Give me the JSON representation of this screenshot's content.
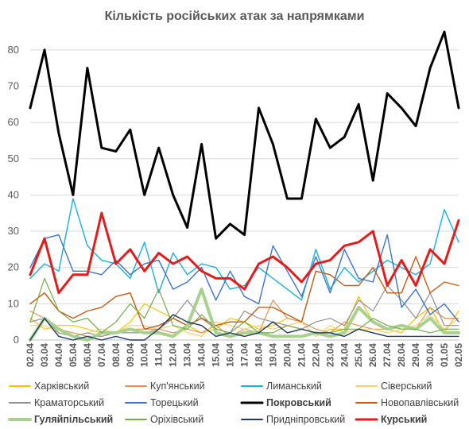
{
  "chart_data": {
    "type": "line",
    "title": "Кількість російських атак за напрямками",
    "xlabel": "",
    "ylabel": "",
    "ylim": [
      0,
      85
    ],
    "yticks": [
      0,
      10,
      20,
      30,
      40,
      50,
      60,
      70,
      80
    ],
    "grid": "horizontal",
    "legend_position": "bottom",
    "x": [
      "02.04",
      "03.04",
      "04.04",
      "05.04",
      "06.04",
      "07.04",
      "08.04",
      "09.04",
      "10.04",
      "11.04",
      "12.04",
      "13.04",
      "14.04",
      "15.04",
      "16.04",
      "17.04",
      "18.04",
      "19.04",
      "20.04",
      "21.04",
      "22.04",
      "23.04",
      "24.04",
      "25.04",
      "26.04",
      "27.04",
      "28.04",
      "29.04",
      "30.04",
      "01.05",
      "02.05"
    ],
    "series": [
      {
        "name": "Харківський",
        "color": "#f2c500",
        "width": 1.2,
        "values": [
          6,
          3,
          4,
          4,
          3,
          2,
          2,
          5,
          10,
          8,
          6,
          4,
          2,
          3,
          6,
          5,
          3,
          4,
          6,
          5,
          1,
          3,
          3,
          12,
          5,
          3,
          2,
          6,
          9,
          2,
          8
        ]
      },
      {
        "name": "Куп'янський",
        "color": "#e0925a",
        "width": 1.2,
        "values": [
          8,
          6,
          3,
          2,
          1,
          1,
          2,
          3,
          3,
          3,
          2,
          3,
          2,
          4,
          1,
          3,
          2,
          11,
          6,
          5,
          3,
          2,
          5,
          4,
          3,
          3,
          4,
          3,
          9,
          6,
          6
        ]
      },
      {
        "name": "Лиманський",
        "color": "#1ab0d8",
        "width": 1.4,
        "values": [
          17,
          21,
          19,
          39,
          26,
          22,
          21,
          17,
          27,
          13,
          24,
          18,
          21,
          20,
          14,
          15,
          20,
          17,
          14,
          11,
          25,
          14,
          20,
          16,
          19,
          22,
          20,
          18,
          21,
          36,
          27
        ]
      },
      {
        "name": "Сіверський",
        "color": "#f7d06a",
        "width": 1.2,
        "values": [
          4,
          4,
          2,
          1,
          2,
          3,
          2,
          4,
          4,
          3,
          4,
          2,
          1,
          5,
          4,
          3,
          4,
          3,
          4,
          5,
          1,
          4,
          2,
          3,
          3,
          2,
          3,
          4,
          7,
          3,
          6
        ]
      },
      {
        "name": "Краматорський",
        "color": "#909090",
        "width": 1.2,
        "values": [
          5,
          6,
          2,
          1,
          2,
          1,
          2,
          2,
          2,
          3,
          6,
          11,
          6,
          3,
          2,
          8,
          6,
          5,
          4,
          3,
          5,
          6,
          4,
          11,
          8,
          15,
          11,
          6,
          13,
          4,
          4
        ]
      },
      {
        "name": "Торецький",
        "color": "#3d74c4",
        "width": 1.4,
        "values": [
          20,
          28,
          29,
          19,
          19,
          18,
          22,
          18,
          21,
          22,
          14,
          16,
          20,
          11,
          19,
          12,
          10,
          26,
          19,
          12,
          23,
          13,
          25,
          17,
          16,
          29,
          9,
          14,
          7,
          10,
          5
        ]
      },
      {
        "name": "Покровський",
        "color": "#000000",
        "width": 3,
        "values": [
          64,
          80,
          57,
          40,
          75,
          53,
          52,
          58,
          40,
          53,
          40,
          31,
          54,
          28,
          32,
          29,
          64,
          54,
          39,
          39,
          61,
          53,
          56,
          65,
          44,
          68,
          64,
          59,
          75,
          85,
          64
        ]
      },
      {
        "name": "Новопавлівський",
        "color": "#c55a11",
        "width": 1.4,
        "values": [
          10,
          13,
          8,
          6,
          8,
          9,
          12,
          13,
          3,
          4,
          6,
          4,
          6,
          4,
          5,
          5,
          9,
          9,
          7,
          5,
          19,
          18,
          15,
          15,
          20,
          13,
          13,
          23,
          13,
          16,
          15
        ]
      },
      {
        "name": "Гуляйпільський",
        "color": "#a9d18e",
        "width": 4,
        "values": [
          0,
          6,
          3,
          1,
          0,
          2,
          2,
          3,
          2,
          2,
          1,
          4,
          14,
          2,
          1,
          2,
          2,
          1,
          1,
          1,
          2,
          1,
          2,
          9,
          5,
          3,
          4,
          3,
          6,
          2,
          2
        ]
      },
      {
        "name": "Оріхівський",
        "color": "#70ad47",
        "width": 1.2,
        "values": [
          5,
          17,
          8,
          5,
          6,
          2,
          5,
          10,
          6,
          14,
          4,
          3,
          7,
          3,
          2,
          5,
          2,
          2,
          4,
          3,
          2,
          2,
          3,
          3,
          6,
          4,
          3,
          3,
          2,
          3,
          3
        ]
      },
      {
        "name": "Придніпровський",
        "color": "#1f3864",
        "width": 1.4,
        "values": [
          0,
          6,
          1,
          0,
          1,
          0,
          1,
          0,
          0,
          3,
          7,
          5,
          4,
          1,
          2,
          1,
          2,
          5,
          2,
          3,
          2,
          2,
          1,
          3,
          2,
          1,
          1,
          1,
          1,
          1,
          1
        ]
      },
      {
        "name": "Курський",
        "color": "#e31c1c",
        "width": 3,
        "values": [
          18,
          28,
          13,
          18,
          18,
          35,
          21,
          25,
          19,
          24,
          21,
          23,
          19,
          17,
          17,
          14,
          21,
          23,
          20,
          16,
          21,
          22,
          26,
          27,
          30,
          15,
          22,
          15,
          25,
          21,
          33
        ]
      }
    ]
  }
}
